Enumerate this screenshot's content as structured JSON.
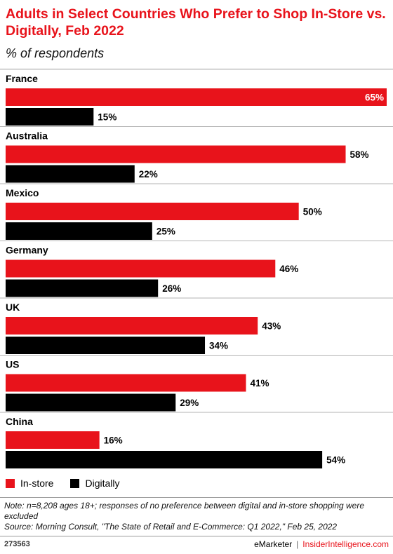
{
  "header": {
    "title": "Adults in Select Countries Who Prefer to Shop In-Store vs. Digitally, Feb 2022",
    "subtitle": "% of respondents"
  },
  "colors": {
    "in_store": "#e8131b",
    "digitally": "#000000",
    "accent": "#e8131b"
  },
  "chart_data": {
    "type": "bar",
    "orientation": "horizontal",
    "title": "Adults in Select Countries Who Prefer to Shop In-Store vs. Digitally, Feb 2022",
    "subtitle": "% of respondents",
    "categories": [
      "France",
      "Australia",
      "Mexico",
      "Germany",
      "UK",
      "US",
      "China"
    ],
    "series": [
      {
        "name": "In-store",
        "values": [
          65,
          58,
          50,
          46,
          43,
          41,
          16
        ]
      },
      {
        "name": "Digitally",
        "values": [
          15,
          22,
          25,
          26,
          34,
          29,
          54
        ]
      }
    ],
    "value_suffix": "%",
    "xlim": [
      0,
      65
    ],
    "legend": "bottom-left",
    "grid": false
  },
  "legend": {
    "in_store": "In-store",
    "digitally": "Digitally"
  },
  "footer": {
    "note": "Note: n=8,208 ages 18+; responses of no preference between digital and in-store shopping were excluded",
    "source": "Source: Morning Consult, \"The State of Retail and E-Commerce: Q1 2022,\" Feb 25, 2022",
    "chart_id": "273563",
    "brand_left": "eMarketer",
    "brand_sep": "|",
    "brand_right": "InsiderIntelligence.com"
  }
}
